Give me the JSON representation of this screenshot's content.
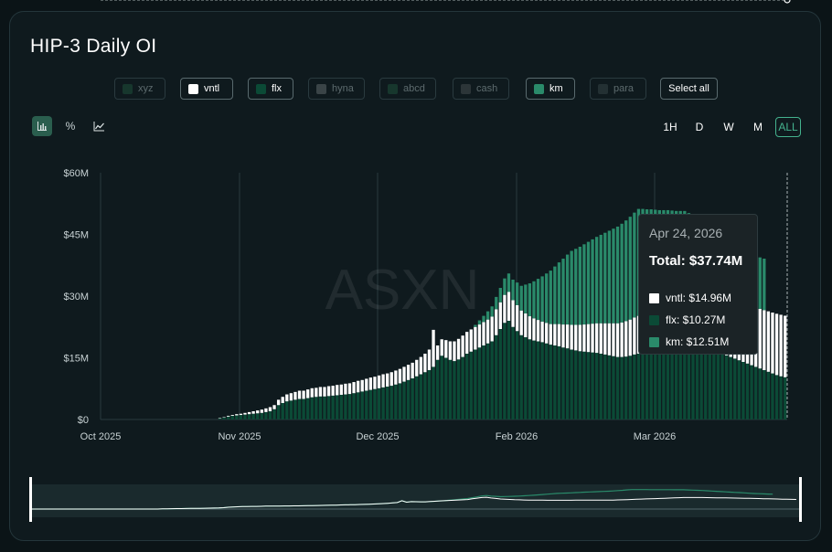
{
  "title": "HIP-3 Daily OI",
  "legend": [
    {
      "label": "xyz",
      "active": false,
      "color": "#17372d"
    },
    {
      "label": "vntl",
      "active": true,
      "color": "#ffffff"
    },
    {
      "label": "flx",
      "active": true,
      "color": "#0b4a36"
    },
    {
      "label": "hyna",
      "active": false,
      "color": "#3a4447"
    },
    {
      "label": "abcd",
      "active": false,
      "color": "#17372d"
    },
    {
      "label": "cash",
      "active": false,
      "color": "#2c3538"
    },
    {
      "label": "km",
      "active": true,
      "color": "#2a8a6a"
    },
    {
      "label": "para",
      "active": false,
      "color": "#233033"
    }
  ],
  "select_all": "Select all",
  "view_icons": [
    "bar-chart-icon",
    "percent-icon",
    "line-chart-icon"
  ],
  "view_icon_glyphs": [
    "",
    "%",
    ""
  ],
  "ranges": [
    "1H",
    "D",
    "W",
    "M",
    "ALL"
  ],
  "active_range": "ALL",
  "watermark": "ASXN",
  "tooltip": {
    "date": "Apr 24, 2026",
    "total": "Total: $37.74M",
    "rows": [
      {
        "label": "vntl: $14.96M",
        "color": "#ffffff"
      },
      {
        "label": "flx: $10.27M",
        "color": "#0b4a36"
      },
      {
        "label": "km: $12.51M",
        "color": "#2a8a6a"
      }
    ]
  },
  "colors": {
    "vntl": "#ffffff",
    "flx": "#0b4a36",
    "km": "#2a8a6a",
    "grid": "#2a3a3f",
    "axis_text": "#c8d2d4"
  },
  "chart_data": {
    "type": "bar",
    "stacked": true,
    "title": "HIP-3 Daily OI",
    "x_tick_labels": [
      "Oct 2025",
      "Nov 2025",
      "Dec 2025",
      "Feb 2026",
      "Mar 2026"
    ],
    "y_tick_labels": [
      "$0",
      "$15M",
      "$30M",
      "$45M",
      "$60M"
    ],
    "ylim": [
      0,
      60
    ],
    "y_unit": "$M",
    "series": [
      {
        "name": "flx",
        "color": "#0b4a36",
        "values": [
          0,
          0,
          0,
          0,
          0,
          0,
          0,
          0,
          0,
          0,
          0,
          0,
          0,
          0,
          0,
          0,
          0,
          0,
          0,
          0,
          0,
          0,
          0,
          0,
          0,
          0,
          0,
          0,
          0.3,
          0.5,
          0.7,
          0.9,
          1.0,
          1.1,
          1.2,
          1.3,
          1.4,
          1.5,
          1.6,
          1.8,
          2.0,
          2.5,
          3.5,
          4.0,
          4.4,
          4.6,
          4.8,
          5.0,
          5.0,
          5.2,
          5.4,
          5.5,
          5.6,
          5.6,
          5.7,
          5.8,
          5.9,
          6.0,
          6.1,
          6.2,
          6.4,
          6.6,
          6.8,
          7.0,
          7.2,
          7.4,
          7.6,
          7.8,
          8.0,
          8.2,
          8.5,
          8.8,
          9.2,
          9.6,
          10.0,
          10.5,
          11.0,
          11.5,
          12.0,
          12.8,
          14.5,
          15.5,
          15.0,
          14.5,
          14.2,
          14.6,
          15.2,
          16.0,
          16.5,
          17.0,
          17.5,
          18.0,
          18.5,
          19.0,
          20.5,
          22.0,
          23.5,
          24.0,
          22.5,
          21.5,
          20.5,
          20.0,
          19.5,
          19.2,
          19.0,
          18.8,
          18.5,
          18.2,
          18.0,
          17.8,
          17.5,
          17.3,
          17.0,
          16.8,
          16.6,
          16.5,
          16.4,
          16.3,
          16.2,
          16.0,
          15.8,
          15.6,
          15.4,
          15.2,
          15.2,
          15.3,
          15.5,
          15.8,
          16.0,
          16.3,
          16.5,
          16.8,
          17.0,
          17.2,
          17.5,
          17.8,
          18.0,
          18.2,
          18.5,
          18.8,
          18.6,
          18.4,
          18.2,
          18.0,
          17.6,
          17.2,
          16.8,
          16.4,
          16.0,
          15.6,
          15.2,
          14.8,
          14.4,
          14.0,
          13.6,
          13.2,
          12.8,
          12.4,
          12.0,
          11.6,
          11.2,
          10.8,
          10.5,
          10.27
        ]
      },
      {
        "name": "vntl",
        "color": "#ffffff",
        "values": [
          0,
          0,
          0,
          0,
          0,
          0,
          0,
          0,
          0,
          0,
          0,
          0,
          0,
          0,
          0,
          0,
          0,
          0,
          0,
          0,
          0,
          0,
          0,
          0,
          0,
          0,
          0,
          0,
          0.1,
          0.1,
          0.2,
          0.2,
          0.3,
          0.3,
          0.4,
          0.5,
          0.6,
          0.7,
          0.8,
          0.9,
          1.0,
          1.0,
          1.3,
          1.5,
          1.7,
          1.8,
          1.9,
          2.0,
          2.0,
          2.1,
          2.2,
          2.2,
          2.3,
          2.3,
          2.4,
          2.4,
          2.5,
          2.5,
          2.6,
          2.6,
          2.7,
          2.8,
          2.8,
          2.9,
          3.0,
          3.0,
          3.1,
          3.2,
          3.2,
          3.3,
          3.4,
          3.5,
          3.6,
          3.7,
          3.8,
          4.0,
          4.2,
          4.5,
          5.0,
          9.0,
          3.5,
          4.0,
          4.3,
          4.5,
          4.8,
          5.0,
          5.2,
          5.3,
          5.4,
          5.5,
          5.6,
          5.7,
          5.8,
          6.0,
          6.3,
          6.5,
          6.8,
          7.0,
          6.5,
          6.3,
          6.0,
          5.8,
          5.6,
          5.4,
          5.2,
          5.0,
          5.0,
          5.0,
          5.2,
          5.4,
          5.6,
          5.8,
          6.0,
          6.2,
          6.4,
          6.6,
          6.8,
          7.0,
          7.2,
          7.4,
          7.6,
          7.8,
          8.0,
          8.2,
          8.4,
          8.6,
          8.8,
          9.0,
          9.2,
          9.4,
          9.6,
          9.8,
          10.0,
          10.2,
          10.4,
          10.6,
          10.8,
          11.0,
          11.2,
          11.4,
          11.6,
          11.8,
          12.0,
          12.2,
          12.4,
          12.6,
          12.8,
          13.0,
          13.2,
          13.4,
          13.6,
          13.8,
          14.0,
          14.1,
          14.2,
          14.3,
          14.4,
          14.5,
          14.6,
          14.7,
          14.8,
          14.9,
          14.96,
          14.96
        ]
      },
      {
        "name": "km",
        "color": "#2a8a6a",
        "values": [
          0,
          0,
          0,
          0,
          0,
          0,
          0,
          0,
          0,
          0,
          0,
          0,
          0,
          0,
          0,
          0,
          0,
          0,
          0,
          0,
          0,
          0,
          0,
          0,
          0,
          0,
          0,
          0,
          0,
          0,
          0,
          0,
          0,
          0,
          0,
          0,
          0,
          0,
          0,
          0,
          0,
          0,
          0,
          0,
          0,
          0,
          0,
          0,
          0,
          0,
          0,
          0,
          0,
          0,
          0,
          0,
          0,
          0,
          0,
          0,
          0,
          0,
          0,
          0,
          0,
          0,
          0,
          0,
          0,
          0,
          0,
          0,
          0,
          0,
          0,
          0,
          0,
          0,
          0,
          0,
          0,
          0,
          0,
          0,
          0,
          0,
          0,
          0,
          0,
          0.5,
          1.0,
          1.5,
          2.0,
          2.5,
          3.0,
          3.5,
          4.0,
          4.5,
          5.0,
          5.5,
          6.0,
          7.0,
          8.0,
          9.0,
          10.0,
          11.0,
          12.0,
          13.0,
          14.0,
          15.0,
          16.0,
          17.0,
          18.0,
          18.5,
          19.0,
          19.5,
          20.0,
          20.5,
          21.0,
          21.5,
          22.0,
          22.5,
          23.0,
          23.5,
          24.0,
          24.5,
          25.0,
          25.5,
          26.0,
          25.5,
          25.0,
          24.5,
          24.0,
          23.5,
          23.0,
          22.5,
          22.0,
          21.5,
          21.0,
          20.5,
          20.0,
          19.5,
          19.0,
          18.5,
          18.0,
          17.5,
          17.0,
          16.5,
          16.0,
          15.5,
          15.0,
          14.5,
          14.0,
          13.5,
          13.0,
          12.8,
          12.6,
          12.51,
          12.51
        ]
      }
    ]
  }
}
